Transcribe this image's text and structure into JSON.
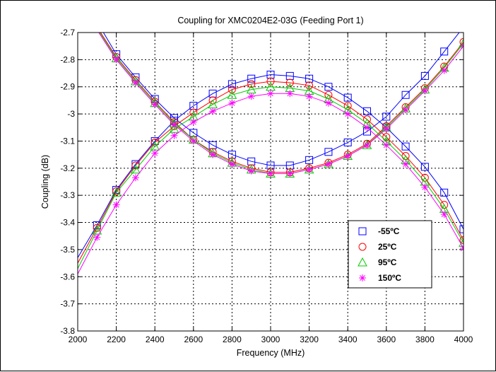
{
  "chart_data": {
    "type": "line",
    "title": "Coupling for XMC0204E2-03G (Feeding Port 1)",
    "xlabel": "Frequency (MHz)",
    "ylabel": "Coupling (dB)",
    "xlim": [
      2000,
      4000
    ],
    "ylim": [
      -3.8,
      -2.7
    ],
    "xticks": [
      "2000",
      "2200",
      "2400",
      "2600",
      "2800",
      "3000",
      "3200",
      "3400",
      "3600",
      "3800",
      "4000"
    ],
    "yticks": [
      "-2.7",
      "-2.8",
      "-2.9",
      "-3",
      "-3.1",
      "-3.2",
      "-3.3",
      "-3.4",
      "-3.5",
      "-3.6",
      "-3.7",
      "-3.8"
    ],
    "grid": true,
    "legend_position": "lower-right",
    "x": [
      2000,
      2100,
      2200,
      2300,
      2400,
      2500,
      2600,
      2700,
      2800,
      2900,
      3000,
      3100,
      3200,
      3300,
      3400,
      3500,
      3600,
      3700,
      3800,
      3900,
      4000
    ],
    "series": [
      {
        "name": "-55ºC",
        "color": "#0000ff",
        "marker": "square",
        "curves": [
          [
            -2.62,
            -2.66,
            -2.78,
            -2.865,
            -2.945,
            -3.015,
            -3.07,
            -3.115,
            -3.15,
            -3.175,
            -3.19,
            -3.19,
            -3.17,
            -3.14,
            -3.105,
            -3.065,
            -3.01,
            -2.93,
            -2.86,
            -2.77,
            -2.68
          ],
          [
            -3.53,
            -3.41,
            -3.28,
            -3.185,
            -3.1,
            -3.025,
            -2.97,
            -2.925,
            -2.89,
            -2.87,
            -2.855,
            -2.86,
            -2.87,
            -2.9,
            -2.94,
            -2.99,
            -3.05,
            -3.12,
            -3.195,
            -3.29,
            -3.425
          ]
        ]
      },
      {
        "name": "25ºC",
        "color": "#ff0000",
        "marker": "circle",
        "curves": [
          [
            -2.63,
            -2.68,
            -2.79,
            -2.875,
            -2.955,
            -3.03,
            -3.095,
            -3.14,
            -3.175,
            -3.2,
            -3.215,
            -3.215,
            -3.2,
            -3.18,
            -3.15,
            -3.11,
            -3.045,
            -2.975,
            -2.905,
            -2.825,
            -2.735
          ],
          [
            -3.55,
            -3.42,
            -3.285,
            -3.19,
            -3.105,
            -3.045,
            -2.995,
            -2.95,
            -2.91,
            -2.89,
            -2.88,
            -2.885,
            -2.895,
            -2.93,
            -2.97,
            -3.02,
            -3.085,
            -3.155,
            -3.235,
            -3.335,
            -3.465
          ]
        ]
      },
      {
        "name": "95ºC",
        "color": "#00cc00",
        "marker": "triangle",
        "curves": [
          [
            -2.63,
            -2.685,
            -2.795,
            -2.88,
            -2.96,
            -3.035,
            -3.095,
            -3.145,
            -3.18,
            -3.205,
            -3.22,
            -3.22,
            -3.205,
            -3.185,
            -3.155,
            -3.115,
            -3.05,
            -2.98,
            -2.91,
            -2.83,
            -2.74
          ],
          [
            -3.57,
            -3.43,
            -3.29,
            -3.205,
            -3.12,
            -3.055,
            -3.01,
            -2.965,
            -2.93,
            -2.91,
            -2.9,
            -2.905,
            -2.915,
            -2.945,
            -2.985,
            -3.035,
            -3.1,
            -3.17,
            -3.25,
            -3.35,
            -3.475
          ]
        ]
      },
      {
        "name": "150ºC",
        "color": "#ff00ff",
        "marker": "asterisk",
        "curves": [
          [
            -2.635,
            -2.69,
            -2.8,
            -2.885,
            -2.965,
            -3.04,
            -3.1,
            -3.15,
            -3.185,
            -3.21,
            -3.22,
            -3.22,
            -3.205,
            -3.185,
            -3.155,
            -3.115,
            -3.055,
            -2.985,
            -2.915,
            -2.84,
            -2.75
          ],
          [
            -3.59,
            -3.455,
            -3.335,
            -3.235,
            -3.145,
            -3.08,
            -3.03,
            -2.99,
            -2.96,
            -2.935,
            -2.925,
            -2.925,
            -2.935,
            -2.96,
            -3.0,
            -3.05,
            -3.115,
            -3.185,
            -3.27,
            -3.37,
            -3.495
          ]
        ]
      }
    ]
  }
}
